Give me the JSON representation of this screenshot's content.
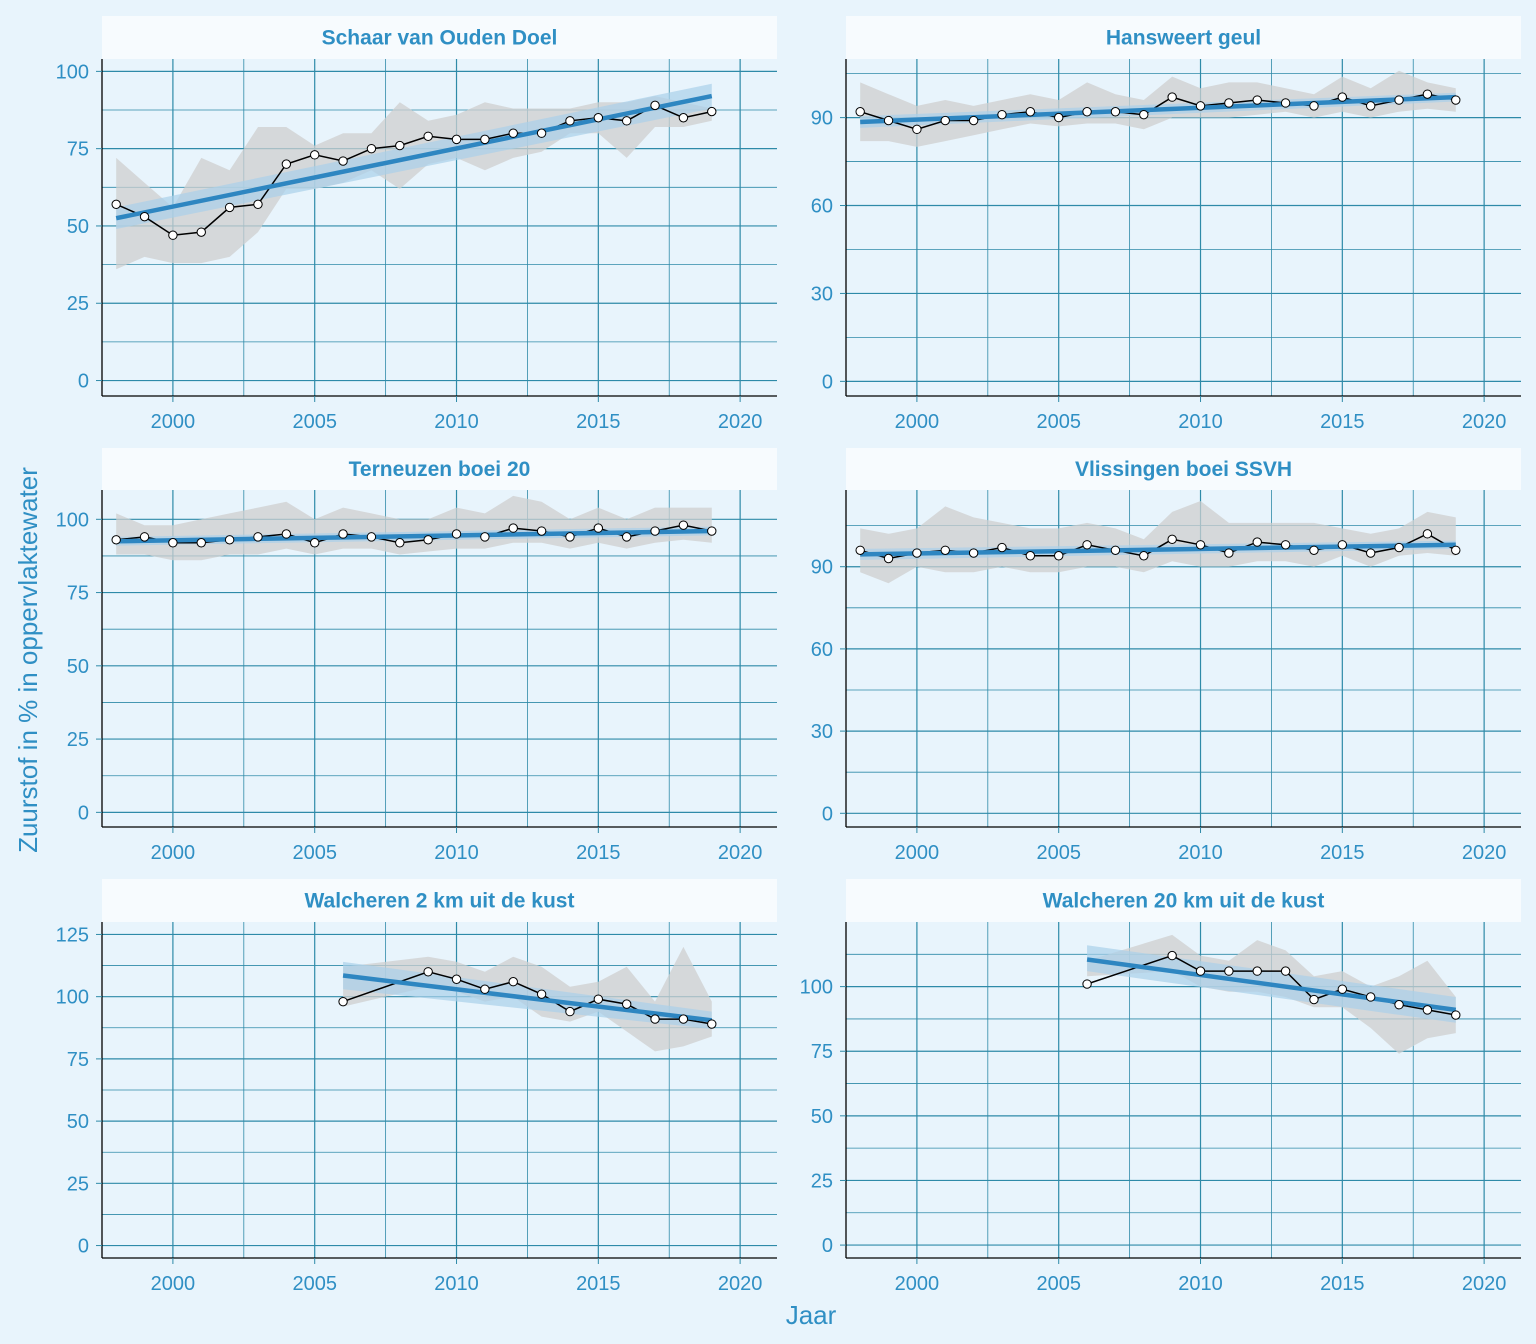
{
  "colors": {
    "background": "#e8f4fc",
    "panel": "#e8f4fc",
    "strip": "#f7fbfe",
    "grid": "#2e8aa8",
    "text": "#2f8fc4",
    "trend": "#2e86c1",
    "trend_band": "#a9d0ea",
    "range_band": "#cfcfcf",
    "observed_line": "#000000"
  },
  "x_title": "Jaar",
  "y_title": "Zuurstof in % in oppervlaktewater",
  "chart_data": [
    {
      "type": "line",
      "title": "Schaar van Ouden Doel",
      "xlim": [
        1997.5,
        2021.3
      ],
      "ylim": [
        -5,
        104
      ],
      "xticks": [
        2000,
        2005,
        2010,
        2015,
        2020
      ],
      "yticks": [
        0,
        25,
        50,
        75,
        100
      ],
      "x": [
        1998,
        1999,
        2000,
        2001,
        2002,
        2003,
        2004,
        2005,
        2006,
        2007,
        2008,
        2009,
        2010,
        2011,
        2012,
        2013,
        2014,
        2015,
        2016,
        2017,
        2018,
        2019
      ],
      "observed": [
        57,
        53,
        47,
        48,
        56,
        57,
        70,
        73,
        71,
        75,
        76,
        79,
        78,
        78,
        80,
        80,
        84,
        85,
        84,
        89,
        85,
        87
      ],
      "range_low": [
        36,
        40,
        38,
        38,
        40,
        48,
        62,
        62,
        64,
        68,
        62,
        70,
        72,
        68,
        72,
        74,
        80,
        80,
        72,
        82,
        82,
        84
      ],
      "range_high": [
        72,
        64,
        56,
        72,
        68,
        82,
        82,
        76,
        80,
        80,
        90,
        84,
        86,
        90,
        88,
        88,
        88,
        90,
        90,
        92,
        90,
        88
      ],
      "trend": {
        "x": [
          1998,
          2019
        ],
        "y": [
          52.5,
          92
        ]
      },
      "trend_band": {
        "low_start": 49,
        "high_start": 56,
        "low_end": 88,
        "high_end": 96
      }
    },
    {
      "type": "line",
      "title": "Hansweert geul",
      "xlim": [
        1997.5,
        2021.3
      ],
      "ylim": [
        -5,
        110
      ],
      "xticks": [
        2000,
        2005,
        2010,
        2015,
        2020
      ],
      "yticks": [
        0,
        30,
        60,
        90
      ],
      "x": [
        1998,
        1999,
        2000,
        2001,
        2002,
        2003,
        2004,
        2005,
        2006,
        2007,
        2008,
        2009,
        2010,
        2011,
        2012,
        2013,
        2014,
        2015,
        2016,
        2017,
        2018,
        2019
      ],
      "observed": [
        92,
        89,
        86,
        89,
        89,
        91,
        92,
        90,
        92,
        92,
        91,
        97,
        94,
        95,
        96,
        95,
        94,
        97,
        94,
        96,
        98,
        96
      ],
      "range_low": [
        82,
        82,
        80,
        82,
        84,
        86,
        88,
        87,
        88,
        88,
        86,
        90,
        90,
        90,
        91,
        92,
        90,
        92,
        90,
        92,
        93,
        92
      ],
      "range_high": [
        102,
        98,
        94,
        96,
        94,
        96,
        98,
        96,
        102,
        98,
        96,
        104,
        100,
        102,
        102,
        100,
        98,
        104,
        100,
        106,
        102,
        100
      ],
      "trend": {
        "x": [
          1998,
          2019
        ],
        "y": [
          88.5,
          97
        ]
      },
      "trend_band": {
        "low_start": 86.5,
        "high_start": 90.5,
        "low_end": 95.5,
        "high_end": 98.5
      }
    },
    {
      "type": "line",
      "title": "Terneuzen boei 20",
      "xlim": [
        1997.5,
        2021.3
      ],
      "ylim": [
        -5,
        110
      ],
      "xticks": [
        2000,
        2005,
        2010,
        2015,
        2020
      ],
      "yticks": [
        0,
        25,
        50,
        75,
        100
      ],
      "x": [
        1998,
        1999,
        2000,
        2001,
        2002,
        2003,
        2004,
        2005,
        2006,
        2007,
        2008,
        2009,
        2010,
        2011,
        2012,
        2013,
        2014,
        2015,
        2016,
        2017,
        2018,
        2019
      ],
      "observed": [
        93,
        94,
        92,
        92,
        93,
        94,
        95,
        92,
        95,
        94,
        92,
        93,
        95,
        94,
        97,
        96,
        94,
        97,
        94,
        96,
        98,
        96
      ],
      "range_low": [
        88,
        88,
        86,
        86,
        88,
        88,
        90,
        88,
        90,
        90,
        88,
        89,
        90,
        90,
        92,
        92,
        90,
        92,
        90,
        92,
        93,
        92
      ],
      "range_high": [
        102,
        98,
        98,
        100,
        102,
        104,
        106,
        100,
        104,
        102,
        100,
        100,
        104,
        102,
        108,
        106,
        100,
        104,
        100,
        104,
        104,
        104
      ],
      "trend": {
        "x": [
          1998,
          2019
        ],
        "y": [
          92.5,
          96
        ]
      },
      "trend_band": {
        "low_start": 91,
        "high_start": 94,
        "low_end": 94.5,
        "high_end": 97.5
      }
    },
    {
      "type": "line",
      "title": "Vlissingen boei SSVH",
      "xlim": [
        1997.5,
        2021.3
      ],
      "ylim": [
        -5,
        118
      ],
      "xticks": [
        2000,
        2005,
        2010,
        2015,
        2020
      ],
      "yticks": [
        0,
        30,
        60,
        90
      ],
      "x": [
        1998,
        1999,
        2000,
        2001,
        2002,
        2003,
        2004,
        2005,
        2006,
        2007,
        2008,
        2009,
        2010,
        2011,
        2012,
        2013,
        2014,
        2015,
        2016,
        2017,
        2018,
        2019
      ],
      "observed": [
        96,
        93,
        95,
        96,
        95,
        97,
        94,
        94,
        98,
        96,
        94,
        100,
        98,
        95,
        99,
        98,
        96,
        98,
        95,
        97,
        102,
        96
      ],
      "range_low": [
        88,
        84,
        90,
        88,
        88,
        90,
        88,
        88,
        90,
        90,
        88,
        92,
        90,
        90,
        92,
        92,
        90,
        94,
        90,
        94,
        95,
        94
      ],
      "range_high": [
        104,
        102,
        104,
        112,
        108,
        106,
        104,
        104,
        106,
        104,
        100,
        110,
        114,
        106,
        106,
        106,
        106,
        104,
        102,
        104,
        110,
        108
      ],
      "trend": {
        "x": [
          1998,
          2019
        ],
        "y": [
          94.5,
          98
        ]
      },
      "trend_band": {
        "low_start": 92.5,
        "high_start": 96.5,
        "low_end": 96.5,
        "high_end": 99.5
      }
    },
    {
      "type": "line",
      "title": "Walcheren 2 km uit de kust",
      "xlim": [
        1997.5,
        2021.3
      ],
      "ylim": [
        -5,
        130
      ],
      "xticks": [
        2000,
        2005,
        2010,
        2015,
        2020
      ],
      "yticks": [
        0,
        25,
        50,
        75,
        100,
        125
      ],
      "x": [
        2006,
        2009,
        2010,
        2011,
        2012,
        2013,
        2014,
        2015,
        2016,
        2017,
        2018,
        2019
      ],
      "observed": [
        98,
        110,
        107,
        103,
        106,
        101,
        94,
        99,
        97,
        91,
        91,
        89
      ],
      "range_low": [
        96,
        104,
        102,
        98,
        100,
        92,
        90,
        94,
        86,
        78,
        80,
        84
      ],
      "range_high": [
        112,
        116,
        114,
        110,
        116,
        112,
        104,
        106,
        112,
        98,
        120,
        98
      ],
      "trend": {
        "x": [
          2006,
          2019
        ],
        "y": [
          108.5,
          90.5
        ]
      },
      "trend_band": {
        "low_start": 103,
        "high_start": 114,
        "low_end": 87,
        "high_end": 94
      }
    },
    {
      "type": "line",
      "title": "Walcheren 20 km uit de kust",
      "xlim": [
        1997.5,
        2021.3
      ],
      "ylim": [
        -5,
        125
      ],
      "xticks": [
        2000,
        2005,
        2010,
        2015,
        2020
      ],
      "yticks": [
        0,
        25,
        50,
        75,
        100
      ],
      "x": [
        2006,
        2009,
        2010,
        2011,
        2012,
        2013,
        2014,
        2015,
        2016,
        2017,
        2018,
        2019
      ],
      "observed": [
        101,
        112,
        106,
        106,
        106,
        106,
        95,
        99,
        96,
        93,
        91,
        89
      ],
      "range_low": [
        104,
        106,
        100,
        98,
        98,
        96,
        92,
        92,
        84,
        74,
        80,
        82
      ],
      "range_high": [
        110,
        120,
        112,
        110,
        118,
        114,
        104,
        106,
        100,
        104,
        110,
        96
      ],
      "trend": {
        "x": [
          2006,
          2019
        ],
        "y": [
          110.5,
          91
        ]
      },
      "trend_band": {
        "low_start": 106,
        "high_start": 116,
        "low_end": 86,
        "high_end": 96
      }
    }
  ]
}
